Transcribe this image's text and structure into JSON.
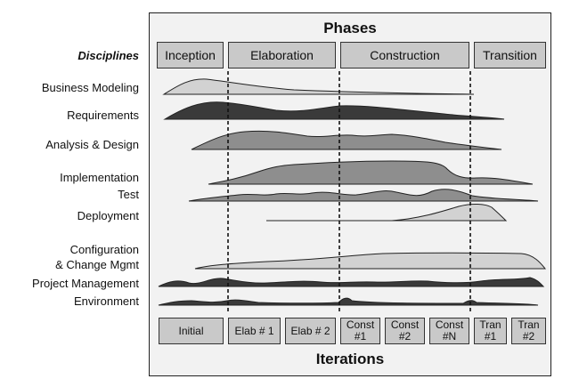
{
  "phases": {
    "title": "Phases",
    "items": [
      "Inception",
      "Elaboration",
      "Construction",
      "Transition"
    ]
  },
  "disciplines": {
    "header": "Disciplines",
    "items": [
      "Business Modeling",
      "Requirements",
      "Analysis & Design",
      "Implementation",
      "Test",
      "Deployment",
      "Configuration",
      "& Change Mgmt",
      "Project Management",
      "Environment"
    ]
  },
  "iterations": {
    "title": "Iterations",
    "items": [
      [
        "Initial"
      ],
      [
        "Elab # 1"
      ],
      [
        "Elab # 2"
      ],
      [
        "Const",
        "#1"
      ],
      [
        "Const",
        "#2"
      ],
      [
        "Const",
        "#N"
      ],
      [
        "Tran",
        "#1"
      ],
      [
        "Tran",
        "#2"
      ]
    ]
  },
  "colors": {
    "light": "#d2d2d2",
    "mid": "#8e8e8e",
    "dark": "#3a3a3a"
  }
}
